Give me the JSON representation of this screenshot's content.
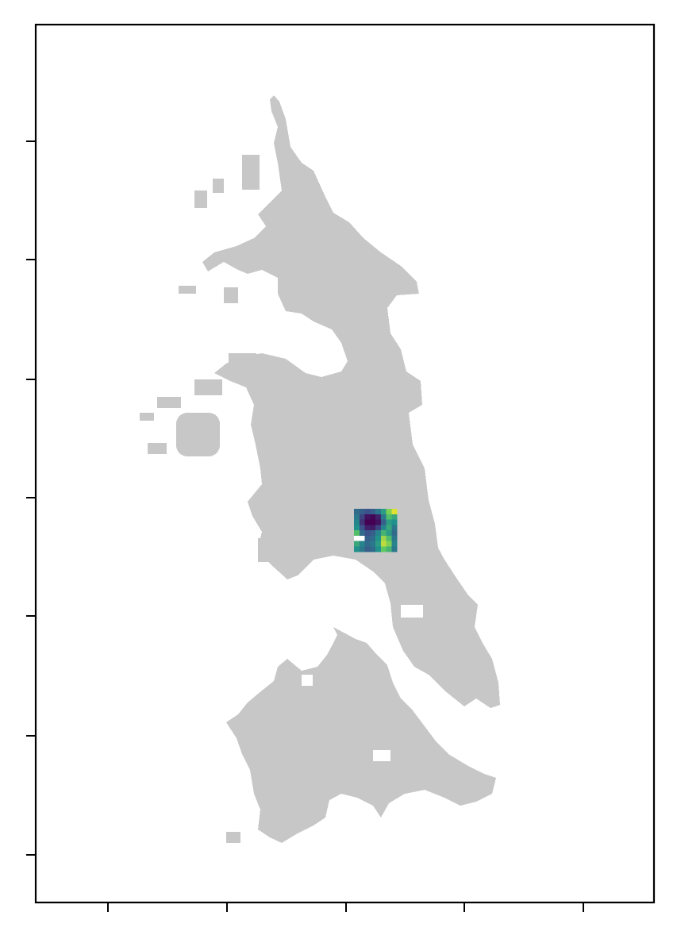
{
  "map": {
    "land_color": "#c7c7c7",
    "background_color": "#ffffff",
    "frame_color": "#000000",
    "axis_tick_labels_visible": false,
    "x_ticks_count": 5,
    "y_ticks_count": 7,
    "colormap": "viridis",
    "colormap_stops": [
      "#440154",
      "#3b528b",
      "#21918c",
      "#5ec962",
      "#fde725"
    ],
    "raster_grid": {
      "cols": 8,
      "rows": 8,
      "values": [
        [
          0.35,
          0.3,
          0.25,
          0.3,
          0.4,
          0.55,
          0.8,
          0.95
        ],
        [
          0.4,
          0.2,
          0.05,
          0.02,
          0.1,
          0.4,
          0.7,
          0.6
        ],
        [
          0.45,
          0.15,
          0.0,
          0.0,
          0.05,
          0.3,
          0.55,
          0.5
        ],
        [
          0.5,
          0.25,
          0.1,
          0.08,
          0.2,
          0.45,
          0.6,
          0.4
        ],
        [
          0.7,
          0.35,
          0.25,
          0.3,
          0.45,
          0.65,
          0.55,
          0.35
        ],
        [
          null,
          null,
          0.3,
          0.35,
          0.5,
          0.85,
          0.7,
          0.4
        ],
        [
          0.6,
          0.45,
          0.35,
          0.4,
          0.55,
          0.9,
          0.8,
          0.45
        ],
        [
          0.5,
          0.4,
          0.3,
          0.35,
          0.5,
          0.75,
          0.65,
          0.4
        ]
      ]
    }
  }
}
